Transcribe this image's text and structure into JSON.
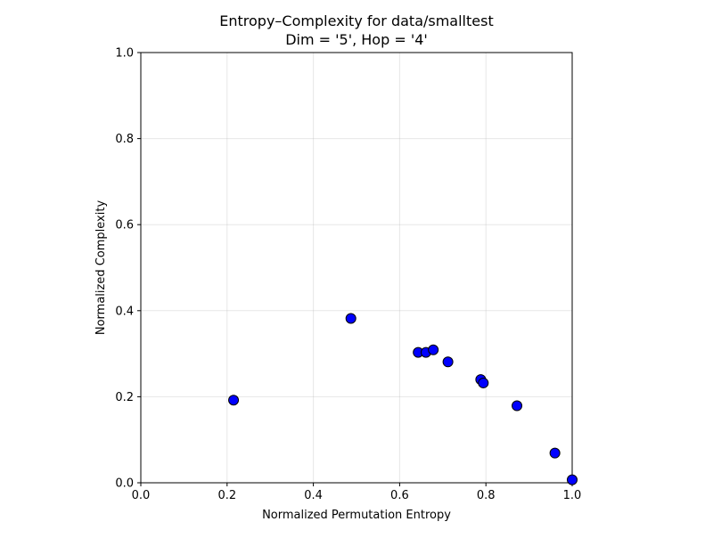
{
  "chart_data": {
    "type": "scatter",
    "title": "Entropy–Complexity for data/smalltest",
    "subtitle": "Dim = '5', Hop = '4'",
    "xlabel": "Normalized Permutation Entropy",
    "ylabel": "Normalized Complexity",
    "xlim": [
      0.0,
      1.0
    ],
    "ylim": [
      0.0,
      1.0
    ],
    "xticks": [
      "0.0",
      "0.2",
      "0.4",
      "0.6",
      "0.8",
      "1.0"
    ],
    "yticks": [
      "0.0",
      "0.2",
      "0.4",
      "0.6",
      "0.8",
      "1.0"
    ],
    "grid": true,
    "marker_color": "#0000ff",
    "marker_edge_color": "#000000",
    "points": [
      {
        "x": 0.215,
        "y": 0.192
      },
      {
        "x": 0.487,
        "y": 0.382
      },
      {
        "x": 0.643,
        "y": 0.303
      },
      {
        "x": 0.661,
        "y": 0.303
      },
      {
        "x": 0.678,
        "y": 0.309
      },
      {
        "x": 0.712,
        "y": 0.281
      },
      {
        "x": 0.788,
        "y": 0.24
      },
      {
        "x": 0.794,
        "y": 0.232
      },
      {
        "x": 0.872,
        "y": 0.179
      },
      {
        "x": 0.96,
        "y": 0.069
      },
      {
        "x": 1.0,
        "y": 0.007
      }
    ]
  }
}
